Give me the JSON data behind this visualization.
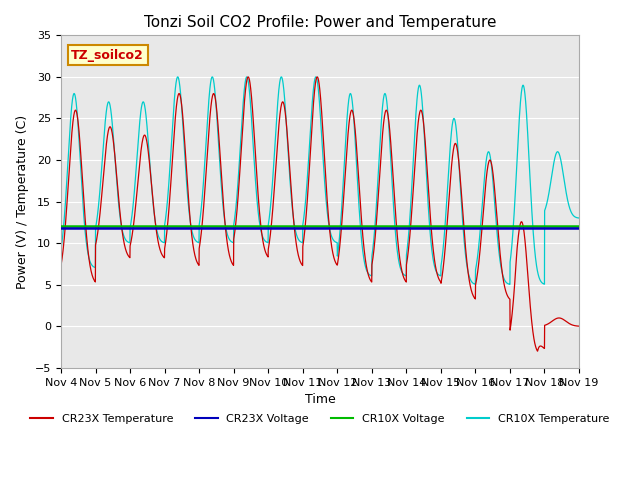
{
  "title": "Tonzi Soil CO2 Profile: Power and Temperature",
  "xlabel": "Time",
  "ylabel": "Power (V) / Temperature (C)",
  "ylim": [
    -5,
    35
  ],
  "xlim": [
    0,
    15
  ],
  "x_tick_labels": [
    "Nov 4",
    "Nov 5",
    "Nov 6",
    "Nov 7",
    "Nov 8",
    "Nov 9",
    "Nov 10",
    "Nov 11",
    "Nov 12",
    "Nov 13",
    "Nov 14",
    "Nov 15",
    "Nov 16",
    "Nov 17",
    "Nov 18",
    "Nov 19"
  ],
  "x_tick_positions": [
    0,
    1,
    2,
    3,
    4,
    5,
    6,
    7,
    8,
    9,
    10,
    11,
    12,
    13,
    14,
    15
  ],
  "cr23x_voltage_value": 11.85,
  "cr10x_voltage_value": 12.1,
  "cr23x_color": "#cc0000",
  "cr10x_color": "#00cccc",
  "cr23x_voltage_color": "#0000bb",
  "cr10x_voltage_color": "#00bb00",
  "label_text": "TZ_soilco2",
  "label_bg": "#ffffcc",
  "label_text_color": "#cc0000",
  "background_color": "#e8e8e8",
  "legend_labels": [
    "CR23X Temperature",
    "CR23X Voltage",
    "CR10X Voltage",
    "CR10X Temperature"
  ],
  "yticks": [
    -5,
    0,
    5,
    10,
    15,
    20,
    25,
    30,
    35
  ]
}
